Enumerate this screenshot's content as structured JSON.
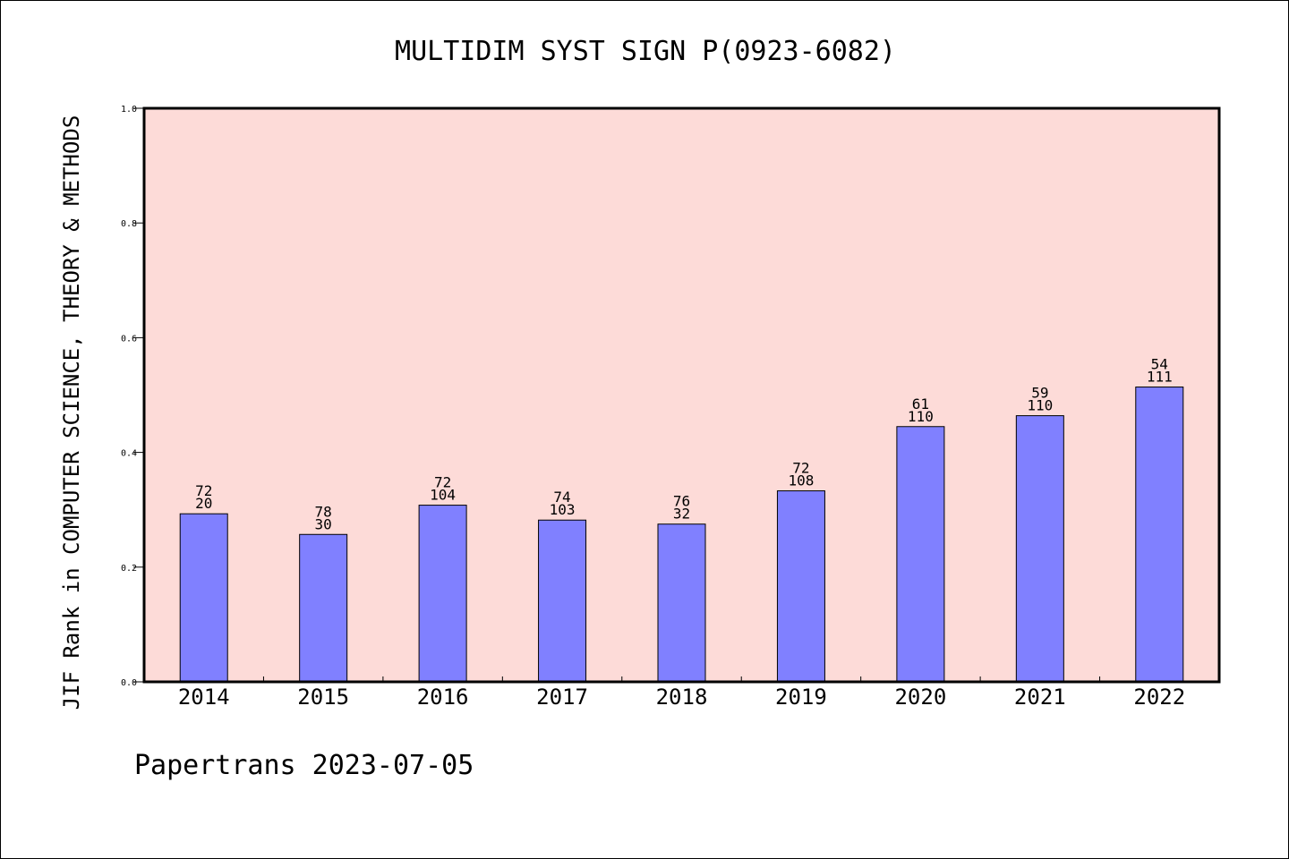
{
  "chart_data": {
    "type": "bar",
    "title": "MULTIDIM SYST SIGN P(0923-6082)",
    "xlabel": "",
    "ylabel": "JIF Rank in COMPUTER SCIENCE, THEORY & METHODS",
    "categories": [
      "2014",
      "2015",
      "2016",
      "2017",
      "2018",
      "2019",
      "2020",
      "2021",
      "2022"
    ],
    "values": [
      0.293,
      0.257,
      0.308,
      0.282,
      0.275,
      0.333,
      0.445,
      0.464,
      0.514
    ],
    "bar_labels_top": [
      "72",
      "78",
      "72",
      "74",
      "76",
      "72",
      "61",
      "59",
      "54"
    ],
    "bar_labels_bottom": [
      "20",
      "30",
      "104",
      "103",
      "32",
      "108",
      "110",
      "110",
      "111"
    ],
    "ylim": [
      0,
      1.0
    ],
    "yticks": [
      "0.0",
      "0.2",
      "0.4",
      "0.6",
      "0.8",
      "1.0"
    ],
    "grid": false,
    "colors": {
      "plot_background": "#FDDBD8",
      "bar_fill": "#8080FF",
      "bar_stroke": "#000000"
    }
  },
  "footer": {
    "credit": "Papertrans 2023-07-05"
  }
}
